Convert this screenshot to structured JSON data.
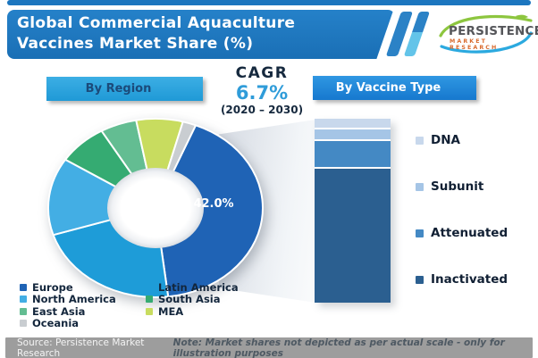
{
  "header": {
    "title_line1": "Global Commercial Aquaculture",
    "title_line2": "Vaccines Market Share (%)",
    "brand": {
      "name": "PERSISTENCE",
      "tagline": "MARKET RESEARCH"
    }
  },
  "cagr": {
    "label": "CAGR",
    "value": "6.7%",
    "period": "(2020 – 2030)"
  },
  "chart_data": [
    {
      "type": "pie",
      "subtype": "donut",
      "title": "By Region",
      "label_text": "42.0%",
      "only_labeled_value": "Europe 42.0%; all other shares estimated from slice angles",
      "start_angle_deg": 22,
      "segments": [
        {
          "label": "Europe",
          "value": 42.0,
          "color": "#1F63B5"
        },
        {
          "label": "Latin America",
          "value": 22.0,
          "color": "#1E9CD8"
        },
        {
          "label": "North America",
          "value": 14.0,
          "color": "#43AEE4"
        },
        {
          "label": "South Asia",
          "value": 7.5,
          "color": "#35AB72"
        },
        {
          "label": "East Asia",
          "value": 5.5,
          "color": "#63BD92"
        },
        {
          "label": "MEA",
          "value": 7.0,
          "color": "#C8DC5F"
        },
        {
          "label": "Oceania",
          "value": 2.0,
          "color": "#C9CDD1"
        }
      ],
      "legend_columns": [
        [
          "Europe",
          "North America",
          "East Asia",
          "Oceania"
        ],
        [
          "Latin America",
          "South Asia",
          "MEA"
        ]
      ],
      "legend_position": "below"
    },
    {
      "type": "bar",
      "subtype": "single-stacked-column",
      "title": "By Vaccine Type",
      "values_note": "shares not labeled in image; estimated from segment heights (not to scale per note)",
      "segments": [
        {
          "label": "DNA",
          "value": 5.0,
          "color": "#C8D8EC"
        },
        {
          "label": "Subunit",
          "value": 6.0,
          "color": "#A5C5E6"
        },
        {
          "label": "Attenuated",
          "value": 15.0,
          "color": "#4489C4"
        },
        {
          "label": "Inactivated",
          "value": 74.0,
          "color": "#2B5F90"
        }
      ],
      "legend_position": "right"
    }
  ],
  "footer": {
    "source": "Source: Persistence Market Research",
    "note": "Note: Market shares not depicted as per actual scale - only for illustration purposes"
  },
  "colors": {
    "header_blue": "#1C76BF",
    "banner_region_blue": "#29A7DF",
    "banner_vaccine_blue": "#1E87D8",
    "cagr_value_blue": "#2F9CD9",
    "footer_gray": "#9D9D9D",
    "brand_tagline_orange": "#D96B2E",
    "brand_swoosh_green": "#8DC63F",
    "brand_swoosh_blue": "#2BA9DF"
  }
}
